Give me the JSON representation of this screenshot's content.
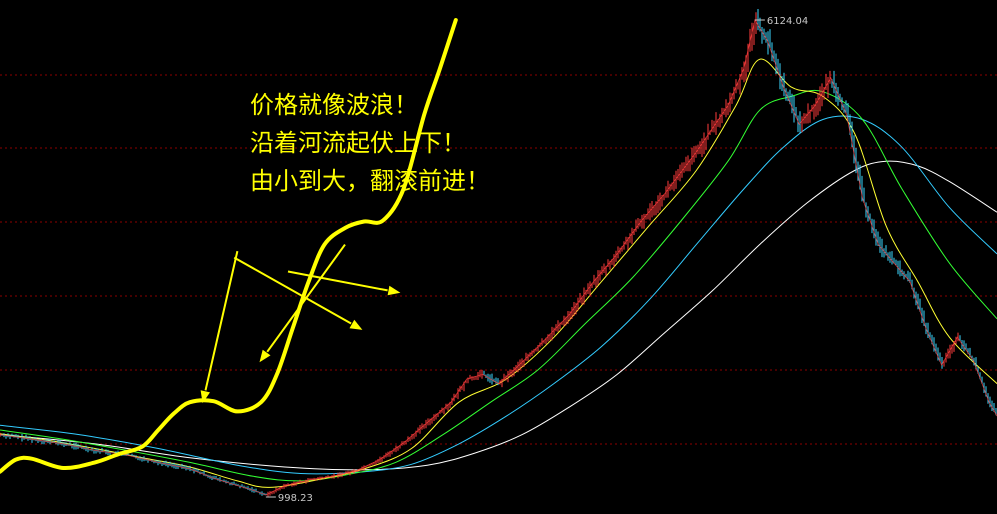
{
  "chart_data": {
    "type": "line",
    "title": "",
    "peak_label": "6124.04",
    "trough_label": "998.23",
    "annotation": {
      "lines": [
        "价格就像波浪！",
        "沿着河流起伏上下！",
        "由小到大，翻滚前进！"
      ],
      "color": "#ffff00"
    },
    "grid": true,
    "colors": {
      "background": "#000000",
      "grid": "#8b0000",
      "price_up": "#ff3b3b",
      "price_down": "#3bd8ff",
      "ma_short": "#ffff33",
      "ma_medium": "#33ff33",
      "ma_long": "#33ccff",
      "ma_longest": "#ffffff",
      "wave": "#ffff00",
      "label": "#c8c8c8"
    },
    "series": [
      {
        "role": "price",
        "points": [
          [
            0,
            1650
          ],
          [
            20,
            1600
          ],
          [
            40,
            1550
          ],
          [
            60,
            1480
          ],
          [
            80,
            1430
          ],
          [
            100,
            1350
          ],
          [
            120,
            1280
          ],
          [
            135,
            1180
          ],
          [
            150,
            1100
          ],
          [
            160,
            1050
          ],
          [
            168,
            998.23
          ],
          [
            180,
            1100
          ],
          [
            195,
            1160
          ],
          [
            210,
            1200
          ],
          [
            225,
            1260
          ],
          [
            240,
            1380
          ],
          [
            255,
            1560
          ],
          [
            270,
            1780
          ],
          [
            285,
            2000
          ],
          [
            295,
            2250
          ],
          [
            305,
            2300
          ],
          [
            315,
            2200
          ],
          [
            325,
            2350
          ],
          [
            340,
            2600
          ],
          [
            360,
            2950
          ],
          [
            375,
            3300
          ],
          [
            390,
            3600
          ],
          [
            405,
            3950
          ],
          [
            420,
            4250
          ],
          [
            440,
            4700
          ],
          [
            460,
            5200
          ],
          [
            470,
            5600
          ],
          [
            477,
            6124.04
          ],
          [
            485,
            5900
          ],
          [
            495,
            5400
          ],
          [
            505,
            5000
          ],
          [
            515,
            5200
          ],
          [
            525,
            5500
          ],
          [
            535,
            5100
          ],
          [
            545,
            4200
          ],
          [
            555,
            3700
          ],
          [
            565,
            3500
          ],
          [
            575,
            3300
          ],
          [
            585,
            2800
          ],
          [
            595,
            2400
          ],
          [
            605,
            2700
          ],
          [
            615,
            2450
          ],
          [
            625,
            2000
          ],
          [
            630,
            1850
          ]
        ]
      },
      {
        "role": "ma_short",
        "points": [
          [
            0,
            1660
          ],
          [
            30,
            1590
          ],
          [
            60,
            1500
          ],
          [
            90,
            1400
          ],
          [
            120,
            1300
          ],
          [
            150,
            1150
          ],
          [
            170,
            1080
          ],
          [
            200,
            1160
          ],
          [
            230,
            1280
          ],
          [
            260,
            1500
          ],
          [
            290,
            2000
          ],
          [
            320,
            2250
          ],
          [
            350,
            2700
          ],
          [
            380,
            3300
          ],
          [
            410,
            3900
          ],
          [
            440,
            4500
          ],
          [
            465,
            5200
          ],
          [
            480,
            5700
          ],
          [
            500,
            5400
          ],
          [
            520,
            5300
          ],
          [
            540,
            4900
          ],
          [
            560,
            3900
          ],
          [
            580,
            3300
          ],
          [
            600,
            2700
          ],
          [
            630,
            2200
          ]
        ]
      },
      {
        "role": "ma_medium",
        "points": [
          [
            0,
            1700
          ],
          [
            40,
            1600
          ],
          [
            80,
            1480
          ],
          [
            120,
            1350
          ],
          [
            160,
            1200
          ],
          [
            190,
            1150
          ],
          [
            220,
            1220
          ],
          [
            250,
            1350
          ],
          [
            280,
            1650
          ],
          [
            310,
            2000
          ],
          [
            340,
            2350
          ],
          [
            370,
            2850
          ],
          [
            400,
            3350
          ],
          [
            430,
            3950
          ],
          [
            460,
            4600
          ],
          [
            480,
            5150
          ],
          [
            500,
            5300
          ],
          [
            520,
            5350
          ],
          [
            545,
            5050
          ],
          [
            570,
            4300
          ],
          [
            600,
            3500
          ],
          [
            630,
            2900
          ]
        ]
      },
      {
        "role": "ma_long",
        "points": [
          [
            0,
            1750
          ],
          [
            50,
            1650
          ],
          [
            100,
            1500
          ],
          [
            150,
            1320
          ],
          [
            190,
            1230
          ],
          [
            230,
            1250
          ],
          [
            260,
            1330
          ],
          [
            290,
            1550
          ],
          [
            320,
            1850
          ],
          [
            350,
            2200
          ],
          [
            380,
            2600
          ],
          [
            410,
            3100
          ],
          [
            440,
            3700
          ],
          [
            470,
            4300
          ],
          [
            495,
            4750
          ],
          [
            520,
            5050
          ],
          [
            545,
            5050
          ],
          [
            570,
            4750
          ],
          [
            600,
            4100
          ],
          [
            630,
            3600
          ]
        ]
      },
      {
        "role": "ma_longest",
        "points": [
          [
            0,
            1650
          ],
          [
            60,
            1550
          ],
          [
            120,
            1400
          ],
          [
            180,
            1300
          ],
          [
            230,
            1270
          ],
          [
            270,
            1320
          ],
          [
            300,
            1450
          ],
          [
            330,
            1650
          ],
          [
            360,
            1950
          ],
          [
            390,
            2300
          ],
          [
            420,
            2750
          ],
          [
            450,
            3200
          ],
          [
            480,
            3700
          ],
          [
            510,
            4150
          ],
          [
            540,
            4500
          ],
          [
            560,
            4600
          ],
          [
            580,
            4550
          ],
          [
            600,
            4380
          ],
          [
            630,
            4050
          ]
        ]
      }
    ],
    "wave_path": [
      [
        0,
        1250
      ],
      [
        10,
        1380
      ],
      [
        20,
        1390
      ],
      [
        40,
        1290
      ],
      [
        60,
        1350
      ],
      [
        75,
        1440
      ],
      [
        90,
        1520
      ],
      [
        100,
        1700
      ],
      [
        110,
        1880
      ],
      [
        120,
        2000
      ],
      [
        135,
        2010
      ],
      [
        150,
        1900
      ],
      [
        165,
        2000
      ],
      [
        175,
        2300
      ],
      [
        185,
        2800
      ],
      [
        195,
        3300
      ],
      [
        205,
        3700
      ],
      [
        218,
        3880
      ],
      [
        230,
        3950
      ],
      [
        242,
        3960
      ],
      [
        255,
        4300
      ],
      [
        268,
        5100
      ],
      [
        278,
        5600
      ],
      [
        288,
        6124
      ]
    ],
    "arrows": [
      {
        "from": [
          218,
          3700
        ],
        "to": [
          164,
          2430
        ]
      },
      {
        "from": [
          150,
          3630
        ],
        "to": [
          128,
          1990
        ]
      },
      {
        "from": [
          182,
          3410
        ],
        "to": [
          253,
          3180
        ]
      },
      {
        "from": [
          148,
          3560
        ],
        "to": [
          229,
          2780
        ]
      }
    ]
  }
}
